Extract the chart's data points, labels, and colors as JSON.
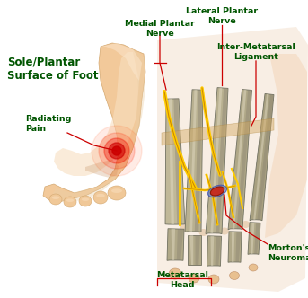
{
  "background_color": "#ffffff",
  "label_color": "#005500",
  "line_color": "#cc0000",
  "font_size_large": 8.5,
  "font_size_small": 6.8,
  "labels": {
    "sole_plantar": "Sole/Plantar\nSurface of Foot",
    "radiating_pain": "Radiating\nPain",
    "medial_plantar": "Medial Plantar\nNerve",
    "lateral_plantar": "Lateral Plantar\nNerve",
    "inter_metatarsal": "Inter-Metatarsal\nLigament",
    "metatarsal_head": "Metatarsal\nHead",
    "mortons_neuroma": "Morton's\nNeuroma"
  },
  "foot_skin_base": "#f0c8a0",
  "foot_skin_light": "#f8dfc0",
  "foot_skin_dark": "#d8a878",
  "bone_base": "#b8b090",
  "bone_light": "#d8d0b8",
  "bone_dark": "#888070",
  "nerve_color": "#ffcc00",
  "nerve_edge": "#cc8800",
  "neuroma_color": "#991111",
  "neuroma_blue": "#3355aa"
}
